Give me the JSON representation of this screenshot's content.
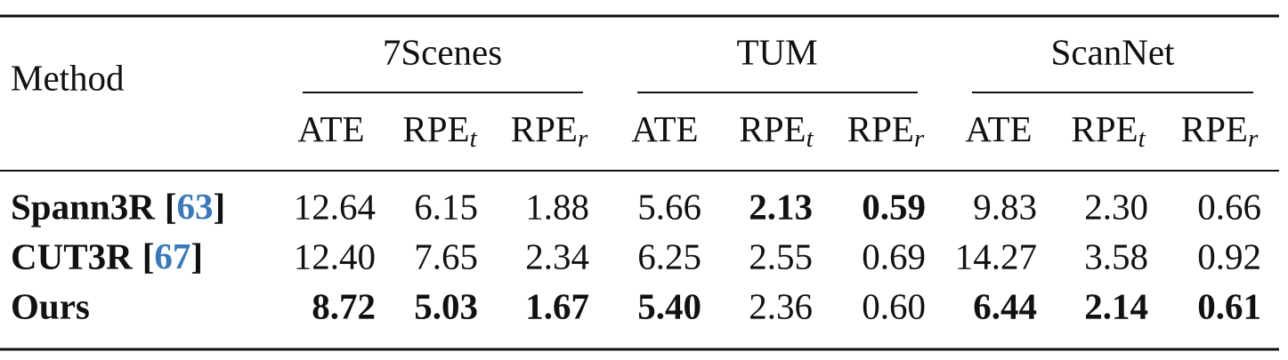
{
  "table": {
    "method_header": "Method",
    "groups": [
      "7Scenes",
      "TUM",
      "ScanNet"
    ],
    "metrics": [
      {
        "text": "ATE"
      },
      {
        "text": "RPE",
        "sub": "t"
      },
      {
        "text": "RPE",
        "sub": "r"
      }
    ],
    "rows": [
      {
        "method": "Spann3R",
        "cite": "[63]",
        "values": [
          "12.64",
          "6.15",
          "1.88",
          "5.66",
          "2.13",
          "0.59",
          "9.83",
          "2.30",
          "0.66"
        ],
        "bold": [
          false,
          false,
          false,
          false,
          true,
          true,
          false,
          false,
          false
        ]
      },
      {
        "method": "CUT3R",
        "cite": "[67]",
        "values": [
          "12.40",
          "7.65",
          "2.34",
          "6.25",
          "2.55",
          "0.69",
          "14.27",
          "3.58",
          "0.92"
        ],
        "bold": [
          false,
          false,
          false,
          false,
          false,
          false,
          false,
          false,
          false
        ]
      },
      {
        "method": "Ours",
        "values": [
          "8.72",
          "5.03",
          "1.67",
          "5.40",
          "2.36",
          "0.60",
          "6.44",
          "2.14",
          "0.61"
        ],
        "bold": [
          true,
          true,
          true,
          true,
          false,
          false,
          true,
          true,
          true
        ]
      }
    ]
  }
}
